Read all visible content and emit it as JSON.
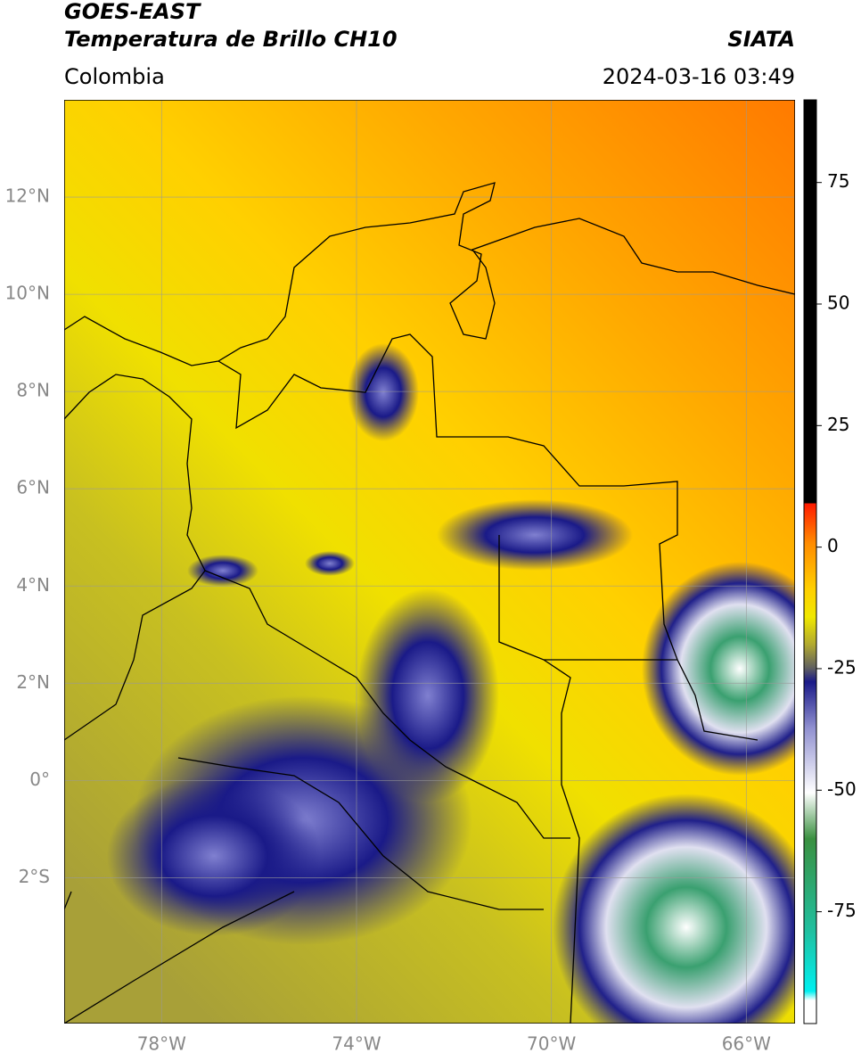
{
  "header": {
    "title_line1": "GOES-EAST",
    "title_line2": "Temperatura de Brillo CH10",
    "region": "Colombia",
    "source": "SIATA",
    "datetime": "2024-03-16 03:49"
  },
  "map": {
    "lon_range": [
      -80,
      -65
    ],
    "lat_range": [
      -5,
      14
    ],
    "lat_ticks": [
      {
        "value": 12,
        "label": "12°N"
      },
      {
        "value": 10,
        "label": "10°N"
      },
      {
        "value": 8,
        "label": "8°N"
      },
      {
        "value": 6,
        "label": "6°N"
      },
      {
        "value": 4,
        "label": "4°N"
      },
      {
        "value": 2,
        "label": "2°N"
      },
      {
        "value": 0,
        "label": "0°"
      },
      {
        "value": -2,
        "label": "2°S"
      }
    ],
    "lon_ticks": [
      {
        "value": -78,
        "label": "78°W"
      },
      {
        "value": -74,
        "label": "74°W"
      },
      {
        "value": -70,
        "label": "70°W"
      },
      {
        "value": -66,
        "label": "66°W"
      }
    ]
  },
  "colorbar": {
    "range": [
      -98,
      92
    ],
    "ticks": [
      75,
      50,
      25,
      0,
      -25,
      -50,
      -75
    ]
  }
}
